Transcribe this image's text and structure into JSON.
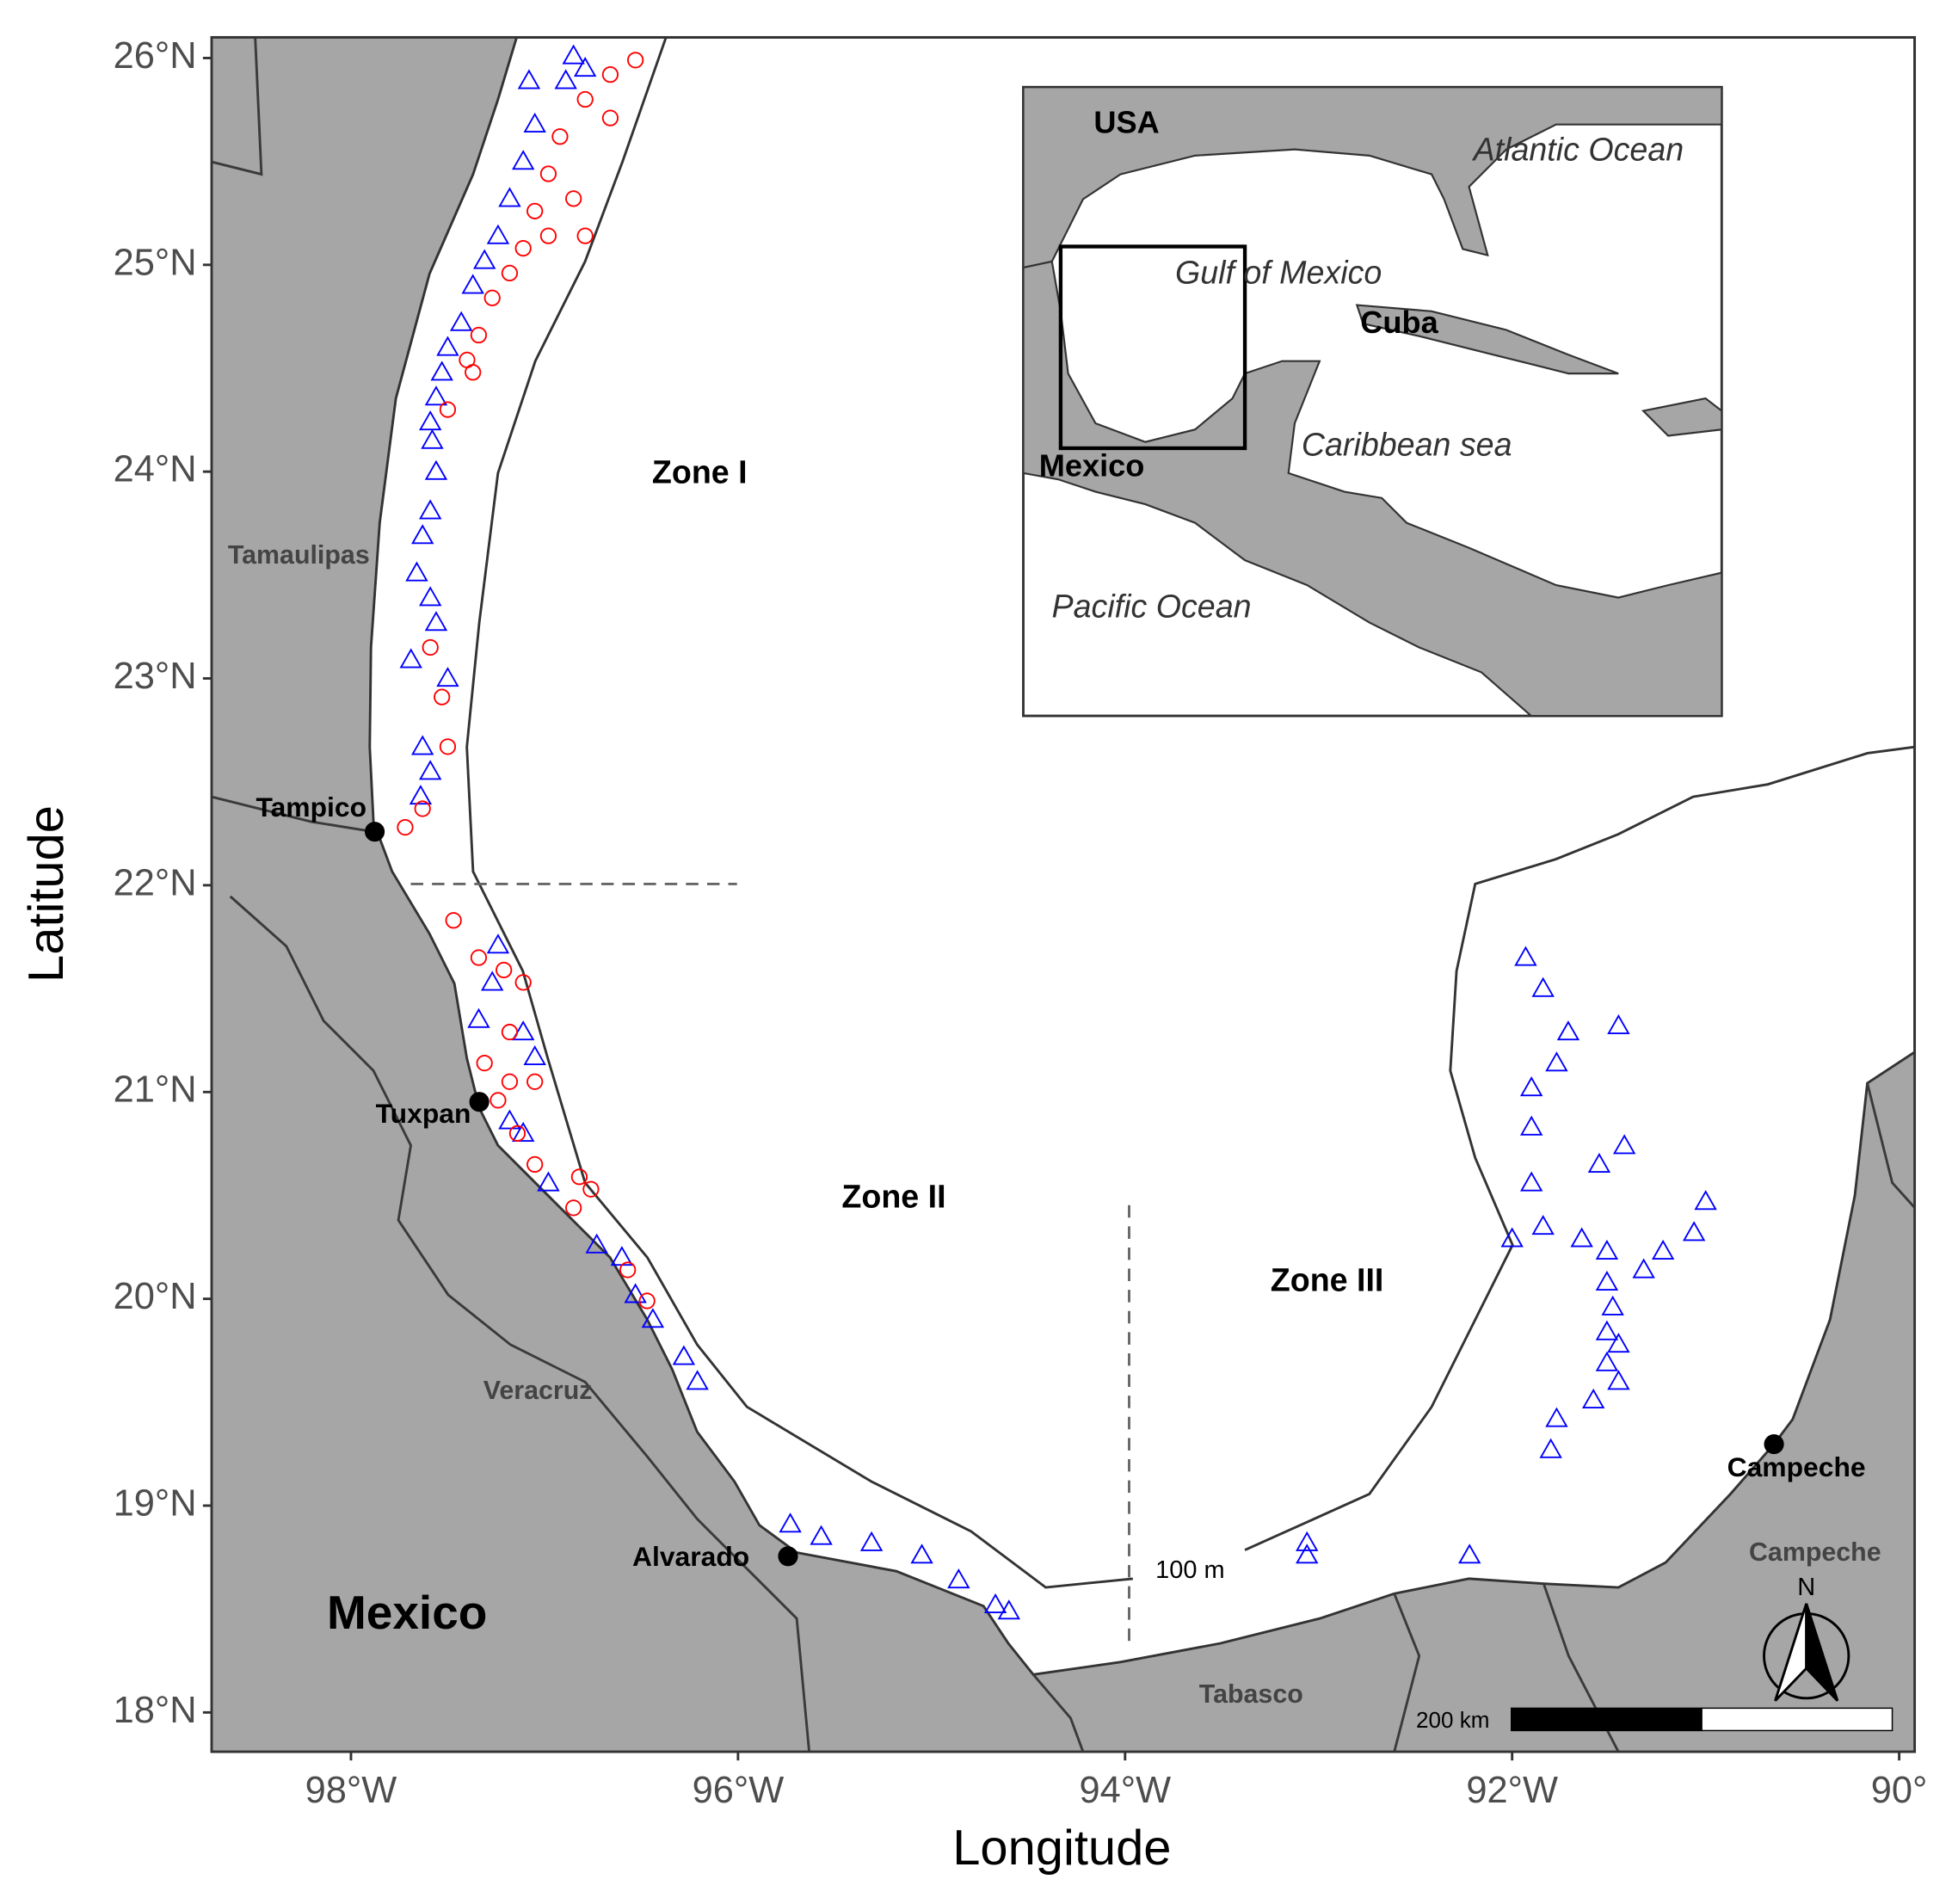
{
  "chart_data": {
    "type": "scatter",
    "xlabel": "Longitude",
    "ylabel": "Latitude",
    "xlim": [
      -98.72,
      -89.92
    ],
    "ylim": [
      17.81,
      26.1
    ],
    "xticks": [
      {
        "value": -98,
        "label": "98°W"
      },
      {
        "value": -96,
        "label": "96°W"
      },
      {
        "value": -94,
        "label": "94°W"
      },
      {
        "value": -92,
        "label": "92°W"
      },
      {
        "value": -90,
        "label": "90°"
      }
    ],
    "yticks": [
      {
        "value": 18,
        "label": "18°N"
      },
      {
        "value": 19,
        "label": "19°N"
      },
      {
        "value": 20,
        "label": "20°N"
      },
      {
        "value": 21,
        "label": "21°N"
      },
      {
        "value": 22,
        "label": "22°N"
      },
      {
        "value": 23,
        "label": "23°N"
      },
      {
        "value": 24,
        "label": "24°N"
      },
      {
        "value": 25,
        "label": "25°N"
      },
      {
        "value": 26,
        "label": "26°N"
      }
    ],
    "series": [
      {
        "color": "#0000ff",
        "marker": "triangle",
        "x": [
          -96.85,
          -96.79,
          -96.89,
          -97.08,
          -97.05,
          -97.11,
          -97.18,
          -97.24,
          -97.31,
          -97.37,
          -97.43,
          -97.5,
          -97.53,
          -97.56,
          -97.59,
          -97.58,
          -97.56,
          -97.59,
          -97.63,
          -97.66,
          -97.59,
          -97.56,
          -97.69,
          -97.5,
          -97.63,
          -97.59,
          -97.64,
          -97.24,
          -97.27,
          -97.34,
          -97.11,
          -97.05,
          -97.18,
          -97.11,
          -96.98,
          -96.73,
          -96.6,
          -96.53,
          -96.44,
          -96.28,
          -96.21,
          -95.73,
          -95.57,
          -95.31,
          -95.05,
          -94.86,
          -94.67,
          -94.6,
          -93.06,
          -93.06,
          -92.22,
          -91.93,
          -91.84,
          -91.71,
          -91.77,
          -91.9,
          -91.45,
          -91.9,
          -91.9,
          -91.84,
          -92.0,
          -91.64,
          -91.55,
          -91.42,
          -91.51,
          -91.51,
          -91.48,
          -91.51,
          -91.45,
          -91.51,
          -91.45,
          -91.58,
          -91.77,
          -91.8,
          -91.32,
          -91.22,
          -91.06,
          -91.0
        ],
        "y": [
          26.01,
          25.95,
          25.89,
          25.89,
          25.68,
          25.5,
          25.32,
          25.14,
          25.02,
          24.9,
          24.72,
          24.6,
          24.48,
          24.36,
          24.24,
          24.15,
          24.0,
          23.81,
          23.69,
          23.51,
          23.39,
          23.27,
          23.09,
          23.0,
          22.67,
          22.55,
          22.43,
          21.71,
          21.53,
          21.35,
          21.29,
          21.17,
          20.86,
          20.8,
          20.56,
          20.26,
          20.2,
          20.02,
          19.9,
          19.72,
          19.6,
          18.91,
          18.85,
          18.82,
          18.76,
          18.64,
          18.52,
          18.49,
          18.82,
          18.76,
          18.76,
          21.65,
          21.5,
          21.29,
          21.14,
          21.02,
          21.32,
          20.83,
          20.56,
          20.35,
          20.29,
          20.29,
          20.65,
          20.74,
          20.23,
          20.08,
          19.96,
          19.84,
          19.78,
          19.69,
          19.6,
          19.51,
          19.42,
          19.27,
          20.14,
          20.23,
          20.32,
          20.47
        ]
      },
      {
        "color": "#ff0000",
        "marker": "circle",
        "x": [
          -96.53,
          -96.66,
          -96.79,
          -96.66,
          -96.92,
          -96.98,
          -96.85,
          -97.05,
          -97.11,
          -96.98,
          -96.79,
          -97.18,
          -97.27,
          -97.34,
          -97.37,
          -97.4,
          -97.5,
          -97.59,
          -97.53,
          -97.5,
          -97.63,
          -97.72,
          -97.47,
          -97.34,
          -97.21,
          -97.11,
          -97.18,
          -97.31,
          -97.18,
          -97.05,
          -97.24,
          -97.14,
          -97.05,
          -96.82,
          -96.76,
          -96.85,
          -96.57,
          -96.47
        ],
        "y": [
          25.99,
          25.92,
          25.8,
          25.71,
          25.62,
          25.44,
          25.32,
          25.26,
          25.08,
          25.14,
          25.14,
          24.96,
          24.84,
          24.66,
          24.48,
          24.54,
          24.3,
          23.15,
          22.91,
          22.67,
          22.37,
          22.28,
          21.83,
          21.65,
          21.59,
          21.53,
          21.29,
          21.14,
          21.05,
          21.05,
          20.96,
          20.8,
          20.65,
          20.59,
          20.53,
          20.44,
          20.14,
          19.99
        ]
      }
    ],
    "annotations": {
      "zones": [
        "Zone I",
        "Zone II",
        "Zone III"
      ],
      "states": [
        "Tamaulipas",
        "Veracruz",
        "Tabasco",
        "Campeche"
      ],
      "country": "Mexico",
      "cities": [
        "Tampico",
        "Tuxpan",
        "Alvarado",
        "Campeche"
      ],
      "isobath": "100 m",
      "scale_bar": "200 km",
      "north": "N",
      "inset": [
        "USA",
        "Atlantic Ocean",
        "Gulf of Mexico",
        "Cuba",
        "Caribbean sea",
        "Mexico",
        "Pacific Ocean"
      ]
    }
  }
}
